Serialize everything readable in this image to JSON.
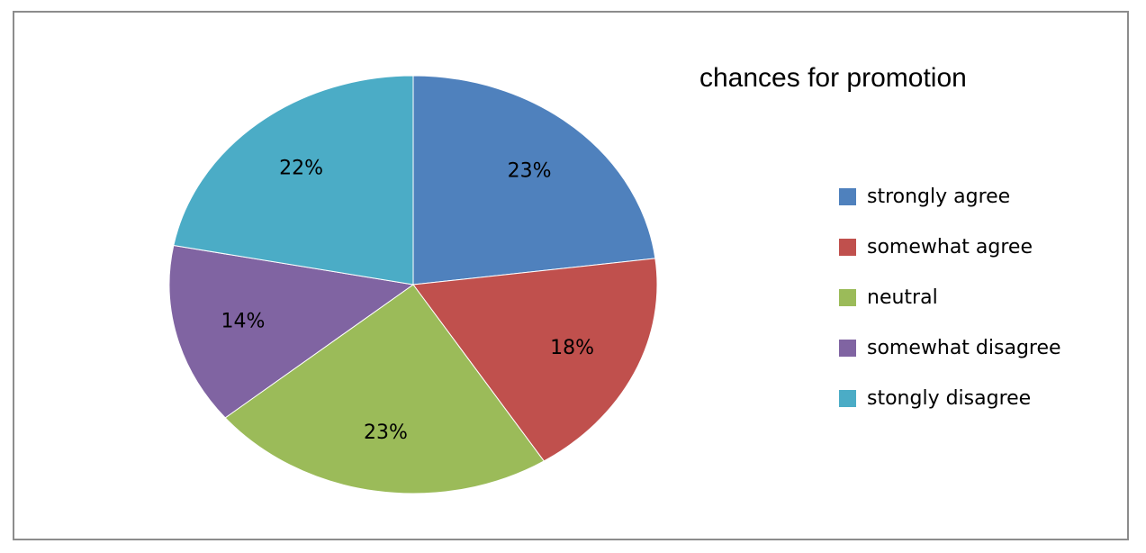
{
  "chart_data": {
    "type": "pie",
    "title": "chances for promotion",
    "categories": [
      "strongly agree",
      "somewhat agree",
      "neutral",
      "somewhat disagree",
      "stongly disagree"
    ],
    "values": [
      23,
      18,
      23,
      14,
      22
    ],
    "value_labels": [
      "23%",
      "18%",
      "23%",
      "14%",
      "22%"
    ],
    "colors": [
      "#4f81bd",
      "#c0504d",
      "#9bbb59",
      "#8064a2",
      "#4bacc6"
    ],
    "start_angle": "12 o'clock",
    "direction": "clockwise",
    "legend_position": "right"
  }
}
